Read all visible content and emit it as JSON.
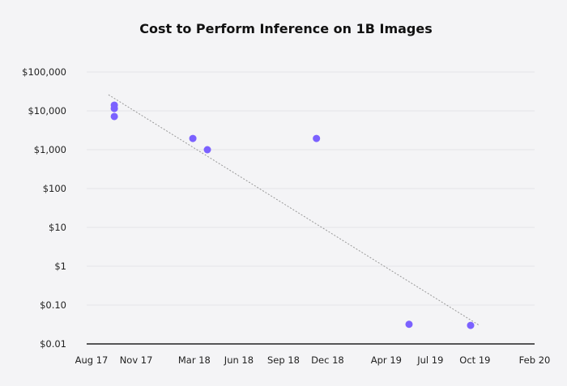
{
  "chart_data": {
    "type": "scatter",
    "title": "Cost to Perform Inference on 1B Images",
    "xlabel": "",
    "ylabel": "",
    "x_scale": "time",
    "y_scale": "log",
    "xlim": [
      "2017-08-01",
      "2020-02-01"
    ],
    "ylim": [
      0.01,
      100000
    ],
    "grid": "horizontal",
    "x_ticks": [
      {
        "date": "2017-08-01",
        "label": "Aug 17"
      },
      {
        "date": "2017-11-01",
        "label": "Nov 17"
      },
      {
        "date": "2018-03-01",
        "label": "Mar 18"
      },
      {
        "date": "2018-06-01",
        "label": "Jun 18"
      },
      {
        "date": "2018-09-01",
        "label": "Sep 18"
      },
      {
        "date": "2018-12-01",
        "label": "Dec 18"
      },
      {
        "date": "2019-04-01",
        "label": "Apr 19"
      },
      {
        "date": "2019-07-01",
        "label": "Jul 19"
      },
      {
        "date": "2019-10-01",
        "label": "Oct 19"
      },
      {
        "date": "2020-02-01",
        "label": "Feb 20"
      }
    ],
    "y_ticks": [
      {
        "value": 100000,
        "label": "$100,000"
      },
      {
        "value": 10000,
        "label": "$10,000"
      },
      {
        "value": 1000,
        "label": "$1,000"
      },
      {
        "value": 100,
        "label": "$100"
      },
      {
        "value": 10,
        "label": "$10"
      },
      {
        "value": 1,
        "label": "$1"
      },
      {
        "value": 0.1,
        "label": "$0.10"
      },
      {
        "value": 0.01,
        "label": "$0.01"
      }
    ],
    "points": [
      {
        "x": "2017-09-17",
        "y": 14000
      },
      {
        "x": "2017-09-17",
        "y": 11500
      },
      {
        "x": "2017-09-17",
        "y": 7150
      },
      {
        "x": "2018-02-26",
        "y": 1950
      },
      {
        "x": "2018-03-28",
        "y": 1000
      },
      {
        "x": "2018-11-08",
        "y": 1950
      },
      {
        "x": "2019-05-18",
        "y": 0.032
      },
      {
        "x": "2019-09-22",
        "y": 0.03
      }
    ],
    "trendline": [
      {
        "x": "2017-09-05",
        "y": 26000
      },
      {
        "x": "2019-10-10",
        "y": 0.03
      }
    ],
    "colors": {
      "points": "#7b61ff",
      "trendline": "#999999",
      "grid": "#e3e3e8",
      "axis": "#222222"
    }
  }
}
